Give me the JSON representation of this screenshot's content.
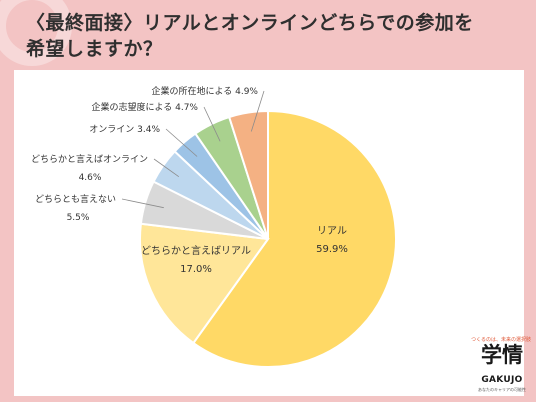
{
  "title_line1": "〈最終面接〉リアルとオンラインどちらでの参加を",
  "title_line2": "希望しますか？",
  "logo": {
    "tagline": "つくるのは、未来の選択肢",
    "brand": "学情",
    "brand_en": "GAKUJO",
    "sub": "あなたのキャリアの可能性"
  },
  "chart_data": {
    "type": "pie",
    "unit": "%",
    "slices": [
      {
        "label": "リアル",
        "value": 59.9,
        "color": "#ffd966"
      },
      {
        "label": "どちらかと言えばリアル",
        "value": 17.0,
        "color": "#ffe699"
      },
      {
        "label": "どちらとも言えない",
        "value": 5.5,
        "color": "#d9d9d9"
      },
      {
        "label": "どちらかと言えばオンライン",
        "value": 4.6,
        "color": "#bdd7ee"
      },
      {
        "label": "オンライン",
        "value": 3.4,
        "color": "#9dc3e6"
      },
      {
        "label": "企業の志望度による",
        "value": 4.7,
        "color": "#a9d18e"
      },
      {
        "label": "企業の所在地による",
        "value": 4.9,
        "color": "#f4b183"
      }
    ]
  }
}
